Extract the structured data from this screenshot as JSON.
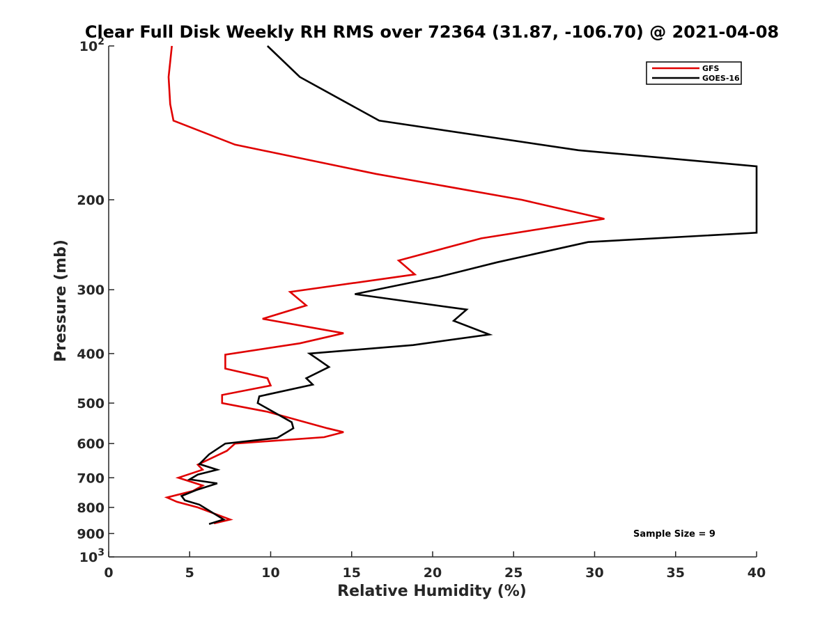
{
  "chart_data": {
    "type": "line",
    "title": "Clear Full Disk Weekly RH RMS over 72364 (31.87, -106.70) @ 2021-04-08",
    "xlabel": "Relative Humidity (%)",
    "ylabel": "Pressure (mb)",
    "xlim": [
      0,
      40
    ],
    "ylim": [
      100,
      1000
    ],
    "y_scale": "log",
    "y_reversed": true,
    "grid": false,
    "legend_position": "top-right",
    "x_ticks": [
      0,
      5,
      10,
      15,
      20,
      25,
      30,
      35,
      40
    ],
    "x_tick_labels": [
      "0",
      "5",
      "10",
      "15",
      "20",
      "25",
      "30",
      "35",
      "40"
    ],
    "y_ticks": [
      100,
      200,
      300,
      400,
      500,
      600,
      700,
      800,
      900,
      1000
    ],
    "y_tick_labels": [
      "10^2",
      "200",
      "300",
      "400",
      "500",
      "600",
      "700",
      "800",
      "900",
      "10^3"
    ],
    "series": [
      {
        "name": "GFS",
        "color": "#e00000",
        "points": [
          [
            3.9,
            100
          ],
          [
            3.7,
            115
          ],
          [
            3.8,
            130
          ],
          [
            4.0,
            140
          ],
          [
            7.8,
            156
          ],
          [
            16.5,
            178
          ],
          [
            25.5,
            200
          ],
          [
            30.6,
            218
          ],
          [
            23.0,
            238
          ],
          [
            17.9,
            263
          ],
          [
            18.9,
            280
          ],
          [
            11.2,
            303
          ],
          [
            12.2,
            322
          ],
          [
            9.5,
            342
          ],
          [
            14.5,
            365
          ],
          [
            11.8,
            382
          ],
          [
            7.2,
            402
          ],
          [
            7.2,
            428
          ],
          [
            9.8,
            447
          ],
          [
            10.0,
            462
          ],
          [
            7.0,
            482
          ],
          [
            7.0,
            500
          ],
          [
            9.8,
            520
          ],
          [
            13.5,
            560
          ],
          [
            14.5,
            570
          ],
          [
            13.3,
            583
          ],
          [
            7.8,
            600
          ],
          [
            7.3,
            620
          ],
          [
            5.5,
            660
          ],
          [
            5.8,
            675
          ],
          [
            4.3,
            700
          ],
          [
            5.8,
            725
          ],
          [
            5.2,
            743
          ],
          [
            3.6,
            765
          ],
          [
            4.2,
            780
          ],
          [
            5.5,
            800
          ],
          [
            7.5,
            845
          ],
          [
            6.5,
            860
          ]
        ]
      },
      {
        "name": "GOES-16",
        "color": "#000000",
        "points": [
          [
            9.8,
            100
          ],
          [
            11.8,
            115
          ],
          [
            16.7,
            140
          ],
          [
            29.0,
            160
          ],
          [
            40.0,
            172
          ],
          [
            40.0,
            232
          ],
          [
            29.6,
            242
          ],
          [
            24.0,
            265
          ],
          [
            20.4,
            283
          ],
          [
            15.2,
            306
          ],
          [
            22.1,
            328
          ],
          [
            21.3,
            345
          ],
          [
            23.5,
            367
          ],
          [
            18.8,
            385
          ],
          [
            12.4,
            400
          ],
          [
            12.9,
            410
          ],
          [
            13.6,
            425
          ],
          [
            12.2,
            447
          ],
          [
            12.6,
            460
          ],
          [
            9.3,
            485
          ],
          [
            9.2,
            500
          ],
          [
            11.3,
            545
          ],
          [
            11.4,
            560
          ],
          [
            10.4,
            585
          ],
          [
            7.2,
            600
          ],
          [
            6.2,
            630
          ],
          [
            5.6,
            658
          ],
          [
            6.7,
            675
          ],
          [
            5.5,
            690
          ],
          [
            5.0,
            705
          ],
          [
            6.7,
            718
          ],
          [
            5.4,
            740
          ],
          [
            4.5,
            760
          ],
          [
            4.7,
            775
          ],
          [
            5.6,
            790
          ],
          [
            7.1,
            845
          ],
          [
            6.2,
            862
          ]
        ]
      }
    ],
    "annotations": [
      "Sample Size = 9"
    ]
  }
}
